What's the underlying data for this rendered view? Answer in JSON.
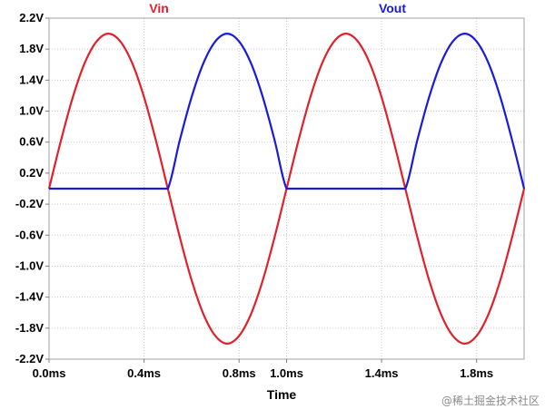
{
  "chart_data": {
    "type": "line",
    "title": "",
    "xlabel": "Time",
    "ylabel": "",
    "xlim": [
      0.0,
      2.0
    ],
    "ylim": [
      -2.2,
      2.2
    ],
    "grid": true,
    "legend_placement": "top",
    "x_ticks": [
      {
        "value": 0.0,
        "label": "0.0ms"
      },
      {
        "value": 0.4,
        "label": "0.4ms"
      },
      {
        "value": 0.8,
        "label": "0.8ms"
      },
      {
        "value": 1.0,
        "label": "1.0ms"
      },
      {
        "value": 1.4,
        "label": "1.4ms"
      },
      {
        "value": 1.8,
        "label": "1.8ms"
      }
    ],
    "y_ticks": [
      {
        "value": 2.2,
        "label": "2.2V"
      },
      {
        "value": 1.8,
        "label": "1.8V"
      },
      {
        "value": 1.4,
        "label": "1.4V"
      },
      {
        "value": 1.0,
        "label": "1.0V"
      },
      {
        "value": 0.6,
        "label": "0.6V"
      },
      {
        "value": 0.2,
        "label": "0.2V"
      },
      {
        "value": -0.2,
        "label": "-0.2V"
      },
      {
        "value": -0.6,
        "label": "-0.6V"
      },
      {
        "value": -1.0,
        "label": "-1.0V"
      },
      {
        "value": -1.4,
        "label": "-1.4V"
      },
      {
        "value": -1.8,
        "label": "-1.8V"
      },
      {
        "value": -2.2,
        "label": "-2.2V"
      }
    ],
    "x": [
      0.0,
      0.05,
      0.1,
      0.15,
      0.2,
      0.25,
      0.3,
      0.35,
      0.4,
      0.45,
      0.5,
      0.55,
      0.6,
      0.65,
      0.7,
      0.75,
      0.8,
      0.85,
      0.9,
      0.95,
      1.0,
      1.05,
      1.1,
      1.15,
      1.2,
      1.25,
      1.3,
      1.35,
      1.4,
      1.45,
      1.5,
      1.55,
      1.6,
      1.65,
      1.7,
      1.75,
      1.8,
      1.85,
      1.9,
      1.95,
      2.0
    ],
    "series": [
      {
        "name": "Vin",
        "color": "#e0202a",
        "values": [
          0.0,
          0.62,
          1.18,
          1.62,
          1.9,
          2.0,
          1.9,
          1.62,
          1.18,
          0.62,
          0.0,
          -0.62,
          -1.18,
          -1.62,
          -1.9,
          -2.0,
          -1.9,
          -1.62,
          -1.18,
          -0.62,
          0.0,
          0.62,
          1.18,
          1.62,
          1.9,
          2.0,
          1.9,
          1.62,
          1.18,
          0.62,
          0.0,
          -0.62,
          -1.18,
          -1.62,
          -1.9,
          -2.0,
          -1.9,
          -1.62,
          -1.18,
          -0.62,
          0.0
        ]
      },
      {
        "name": "Vout",
        "color": "#1a1adc",
        "values": [
          0.0,
          0.0,
          0.0,
          0.0,
          0.0,
          0.0,
          0.0,
          0.0,
          0.0,
          0.0,
          0.0,
          0.62,
          1.18,
          1.62,
          1.9,
          2.0,
          1.9,
          1.62,
          1.18,
          0.62,
          0.0,
          0.0,
          0.0,
          0.0,
          0.0,
          0.0,
          0.0,
          0.0,
          0.0,
          0.0,
          0.0,
          0.62,
          1.18,
          1.62,
          1.9,
          2.0,
          1.9,
          1.62,
          1.18,
          0.62,
          0.0
        ]
      }
    ]
  },
  "watermark": "@稀土掘金技术社区"
}
